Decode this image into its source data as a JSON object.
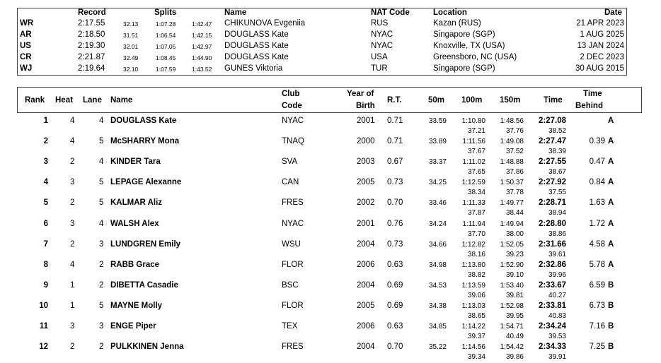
{
  "records": {
    "headers": {
      "record": "Record",
      "splits": "Splits",
      "name": "Name",
      "nat_code": "NAT Code",
      "location": "Location",
      "date": "Date"
    },
    "rows": [
      {
        "type": "WR",
        "time": "2:17.55",
        "s1": "32.13",
        "s2": "1:07.28",
        "s3": "1:42.47",
        "name": "CHIKUNOVA Evgeniia",
        "code": "RUS",
        "location": "Kazan (RUS)",
        "date": "21 APR 2023"
      },
      {
        "type": "AR",
        "time": "2:18.50",
        "s1": "31.51",
        "s2": "1:06.54",
        "s3": "1:42.15",
        "name": "DOUGLASS Kate",
        "code": "NYAC",
        "location": "Singapore (SGP)",
        "date": "1 AUG 2025"
      },
      {
        "type": "US",
        "time": "2:19.30",
        "s1": "32.01",
        "s2": "1:07.05",
        "s3": "1:42.97",
        "name": "DOUGLASS Kate",
        "code": "NYAC",
        "location": "Knoxville, TX (USA)",
        "date": "13 JAN 2024"
      },
      {
        "type": "CR",
        "time": "2:21.87",
        "s1": "32.49",
        "s2": "1:08.45",
        "s3": "1:44.90",
        "name": "DOUGLASS Kate",
        "code": "USA",
        "location": "Greensboro, NC (USA)",
        "date": "2 DEC 2023"
      },
      {
        "type": "WJ",
        "time": "2:19.64",
        "s1": "32.10",
        "s2": "1:07.59",
        "s3": "1:43.52",
        "name": "GUNES Viktoria",
        "code": "TUR",
        "location": "Singapore (SGP)",
        "date": "30 AUG 2015"
      }
    ]
  },
  "results": {
    "headers": {
      "rank": "Rank",
      "heat": "Heat",
      "lane": "Lane",
      "name": "Name",
      "club1": "Club",
      "club2": "Code",
      "yob1": "Year of",
      "yob2": "Birth",
      "rt": "R.T.",
      "m50": "50m",
      "m100": "100m",
      "m150": "150m",
      "time": "Time",
      "behind1": "Time",
      "behind2": "Behind"
    },
    "rows": [
      {
        "rank": "1",
        "heat": "4",
        "lane": "4",
        "name": "DOUGLASS Kate",
        "club": "NYAC",
        "yob": "2001",
        "rt": "0.71",
        "m50": "33.59",
        "m100": "1:10.80",
        "m150": "1:48.56",
        "time": "2:27.08",
        "sp100": "37.21",
        "sp150": "37.76",
        "sp200": "38.52",
        "behind": "",
        "grp": "A"
      },
      {
        "rank": "2",
        "heat": "4",
        "lane": "5",
        "name": "McSHARRY Mona",
        "club": "TNAQ",
        "yob": "2000",
        "rt": "0.71",
        "m50": "33.89",
        "m100": "1:11.56",
        "m150": "1:49.08",
        "time": "2:27.47",
        "sp100": "37.67",
        "sp150": "37.52",
        "sp200": "38.39",
        "behind": "0.39",
        "grp": "A"
      },
      {
        "rank": "3",
        "heat": "2",
        "lane": "4",
        "name": "KINDER Tara",
        "club": "SVA",
        "yob": "2003",
        "rt": "0.67",
        "m50": "33.37",
        "m100": "1:11.02",
        "m150": "1:48.88",
        "time": "2:27.55",
        "sp100": "37.65",
        "sp150": "37.86",
        "sp200": "38.67",
        "behind": "0.47",
        "grp": "A"
      },
      {
        "rank": "4",
        "heat": "3",
        "lane": "5",
        "name": "LEPAGE Alexanne",
        "club": "CAN",
        "yob": "2005",
        "rt": "0.73",
        "m50": "34.25",
        "m100": "1:12.59",
        "m150": "1:50.37",
        "time": "2:27.92",
        "sp100": "38.34",
        "sp150": "37.78",
        "sp200": "37.55",
        "behind": "0.84",
        "grp": "A"
      },
      {
        "rank": "5",
        "heat": "2",
        "lane": "5",
        "name": "KALMAR Aliz",
        "club": "FRES",
        "yob": "2002",
        "rt": "0.70",
        "m50": "33.46",
        "m100": "1:11.33",
        "m150": "1:49.77",
        "time": "2:28.71",
        "sp100": "37.87",
        "sp150": "38.44",
        "sp200": "38.94",
        "behind": "1.63",
        "grp": "A"
      },
      {
        "rank": "6",
        "heat": "3",
        "lane": "4",
        "name": "WALSH Alex",
        "club": "NYAC",
        "yob": "2001",
        "rt": "0.76",
        "m50": "34.24",
        "m100": "1:11.94",
        "m150": "1:49.94",
        "time": "2:28.80",
        "sp100": "37.70",
        "sp150": "38.00",
        "sp200": "38.86",
        "behind": "1.72",
        "grp": "A"
      },
      {
        "rank": "7",
        "heat": "2",
        "lane": "3",
        "name": "LUNDGREN Emily",
        "club": "WSU",
        "yob": "2004",
        "rt": "0.73",
        "m50": "34.66",
        "m100": "1:12.82",
        "m150": "1:52.05",
        "time": "2:31.66",
        "sp100": "38.16",
        "sp150": "39.23",
        "sp200": "39.61",
        "behind": "4.58",
        "grp": "A"
      },
      {
        "rank": "8",
        "heat": "4",
        "lane": "2",
        "name": "RABB Grace",
        "club": "FLOR",
        "yob": "2006",
        "rt": "0.63",
        "m50": "34.98",
        "m100": "1:13.80",
        "m150": "1:52.90",
        "time": "2:32.86",
        "sp100": "38.82",
        "sp150": "39.10",
        "sp200": "39.96",
        "behind": "5.78",
        "grp": "A"
      },
      {
        "rank": "9",
        "heat": "1",
        "lane": "2",
        "name": "DIBETTA Casadie",
        "club": "BSC",
        "yob": "2004",
        "rt": "0.69",
        "m50": "34.53",
        "m100": "1:13.59",
        "m150": "1:53.40",
        "time": "2:33.67",
        "sp100": "39.06",
        "sp150": "39.81",
        "sp200": "40.27",
        "behind": "6.59",
        "grp": "B"
      },
      {
        "rank": "10",
        "heat": "1",
        "lane": "5",
        "name": "MAYNE Molly",
        "club": "FLOR",
        "yob": "2005",
        "rt": "0.69",
        "m50": "34.38",
        "m100": "1:13.03",
        "m150": "1:52.98",
        "time": "2:33.81",
        "sp100": "38.65",
        "sp150": "39.95",
        "sp200": "40.83",
        "behind": "6.73",
        "grp": "B"
      },
      {
        "rank": "11",
        "heat": "3",
        "lane": "3",
        "name": "ENGE Piper",
        "club": "TEX",
        "yob": "2006",
        "rt": "0.63",
        "m50": "34.85",
        "m100": "1:14.22",
        "m150": "1:54.71",
        "time": "2:34.24",
        "sp100": "39.37",
        "sp150": "40.49",
        "sp200": "39.53",
        "behind": "7.16",
        "grp": "B"
      },
      {
        "rank": "12",
        "heat": "2",
        "lane": "2",
        "name": "PULKKINEN Jenna",
        "club": "FRES",
        "yob": "2004",
        "rt": "0.70",
        "m50": "35.22",
        "m100": "1:14.56",
        "m150": "1:54.42",
        "time": "2:34.33",
        "sp100": "39.34",
        "sp150": "39.86",
        "sp200": "39.91",
        "behind": "7.25",
        "grp": "B"
      }
    ]
  }
}
